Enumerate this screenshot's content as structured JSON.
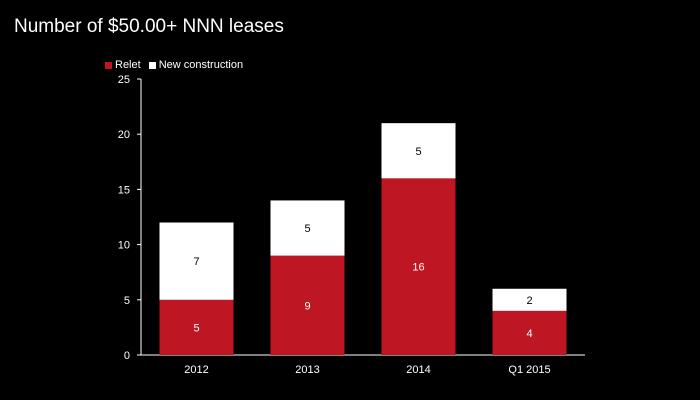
{
  "chart_data": {
    "type": "bar",
    "stacked": true,
    "title": "Number of $50.00+ NNN leases",
    "categories": [
      "2012",
      "2013",
      "2014",
      "Q1 2015"
    ],
    "series": [
      {
        "name": "Relet",
        "values": [
          5,
          9,
          16,
          4
        ],
        "color": "#be1622"
      },
      {
        "name": "New construction",
        "values": [
          7,
          5,
          5,
          2
        ],
        "color": "#ffffff"
      }
    ],
    "ylim": [
      0,
      25
    ],
    "yticks": [
      0,
      5,
      10,
      15,
      20,
      25
    ],
    "grid": false,
    "legend_position": "top-left",
    "data_label_colors": {
      "Relet": "#ffffff",
      "New construction": "#000000"
    }
  }
}
